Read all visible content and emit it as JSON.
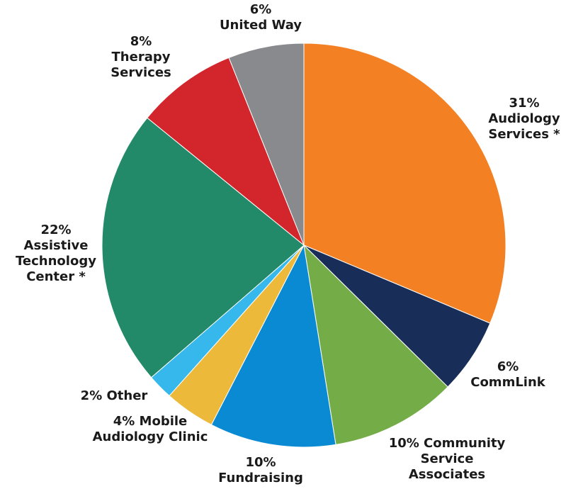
{
  "chart_data": {
    "type": "pie",
    "slices": [
      {
        "label": "Audiology Services *",
        "value": 31,
        "color": "#F38124",
        "text_lines": [
          "31%",
          "Audiology",
          "Services *"
        ]
      },
      {
        "label": "CommLink",
        "value": 6,
        "color": "#182D58",
        "text_lines": [
          "6%",
          "CommLink"
        ]
      },
      {
        "label": "Community Service Associates",
        "value": 10,
        "color": "#74AD47",
        "text_lines": [
          "10% Community",
          "Service",
          "Associates"
        ]
      },
      {
        "label": "Fundraising",
        "value": 10,
        "color": "#0A8AD3",
        "text_lines": [
          "10%",
          "Fundraising"
        ]
      },
      {
        "label": "Mobile Audiology Clinic",
        "value": 4,
        "color": "#ECB93B",
        "text_lines": [
          "4% Mobile",
          "Audiology Clinic"
        ]
      },
      {
        "label": "Other",
        "value": 2,
        "color": "#36B8EC",
        "text_lines": [
          "2% Other"
        ]
      },
      {
        "label": "Assistive Technology Center *",
        "value": 22,
        "color": "#238A69",
        "text_lines": [
          "22%",
          "Assistive",
          "Technology",
          "Center *"
        ]
      },
      {
        "label": "Therapy Services",
        "value": 8,
        "color": "#D3262C",
        "text_lines": [
          "8%",
          "Therapy",
          "Services"
        ]
      },
      {
        "label": "United Way",
        "value": 6,
        "color": "#898A8D",
        "text_lines": [
          "6%",
          "United Way"
        ]
      }
    ]
  }
}
